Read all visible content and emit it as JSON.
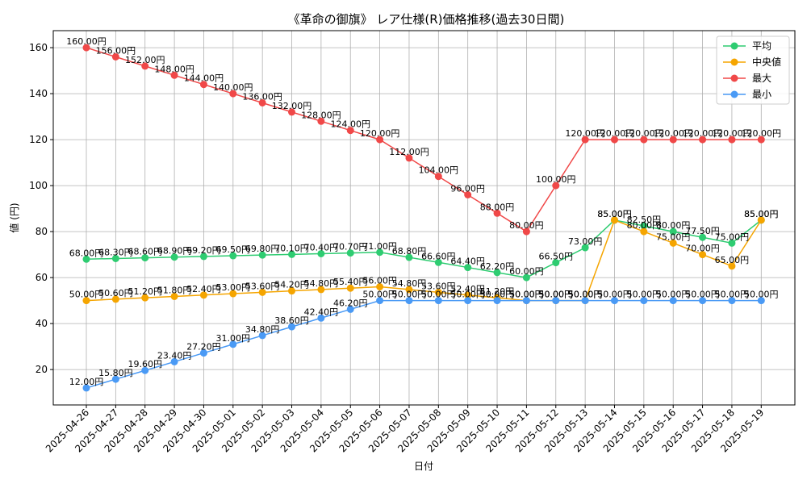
{
  "chart_data": {
    "type": "line",
    "title": "《革命の御旗》 レア仕様(R)価格推移(過去30日間)",
    "xlabel": "日付",
    "ylabel": "値 (円)",
    "ylim": [
      4.6,
      167.4
    ],
    "yticks": [
      20,
      40,
      60,
      80,
      100,
      120,
      140,
      160
    ],
    "grid": true,
    "legend_position": "top-right",
    "label_suffix": "円",
    "categories": [
      "2025-04-26",
      "2025-04-27",
      "2025-04-28",
      "2025-04-29",
      "2025-04-30",
      "2025-05-01",
      "2025-05-02",
      "2025-05-03",
      "2025-05-04",
      "2025-05-05",
      "2025-05-06",
      "2025-05-07",
      "2025-05-08",
      "2025-05-09",
      "2025-05-10",
      "2025-05-11",
      "2025-05-12",
      "2025-05-13",
      "2025-05-14",
      "2025-05-15",
      "2025-05-16",
      "2025-05-17",
      "2025-05-18",
      "2025-05-19"
    ],
    "series": [
      {
        "name": "平均",
        "color": "#2ecc71",
        "values": [
          68.0,
          68.3,
          68.6,
          68.9,
          69.2,
          69.5,
          69.8,
          70.1,
          70.4,
          70.7,
          71.0,
          68.8,
          66.6,
          64.4,
          62.2,
          60.0,
          66.5,
          73.0,
          85.0,
          82.5,
          80.0,
          77.5,
          75.0,
          85.0
        ]
      },
      {
        "name": "中央値",
        "color": "#f5a500",
        "values": [
          50.0,
          50.6,
          51.2,
          51.8,
          52.4,
          53.0,
          53.6,
          54.2,
          54.8,
          55.4,
          56.0,
          54.8,
          53.6,
          52.4,
          51.2,
          50.0,
          50.0,
          50.0,
          85.0,
          80.0,
          75.0,
          70.0,
          65.0,
          85.0
        ]
      },
      {
        "name": "最大",
        "color": "#f04848",
        "values": [
          160.0,
          156.0,
          152.0,
          148.0,
          144.0,
          140.0,
          136.0,
          132.0,
          128.0,
          124.0,
          120.0,
          112.0,
          104.0,
          96.0,
          88.0,
          80.0,
          100.0,
          120.0,
          120.0,
          120.0,
          120.0,
          120.0,
          120.0,
          120.0
        ]
      },
      {
        "name": "最小",
        "color": "#4a9af5",
        "values": [
          12.0,
          15.8,
          19.6,
          23.4,
          27.2,
          31.0,
          34.8,
          38.6,
          42.4,
          46.2,
          50.0,
          50.0,
          50.0,
          50.0,
          50.0,
          50.0,
          50.0,
          50.0,
          50.0,
          50.0,
          50.0,
          50.0,
          50.0,
          50.0
        ]
      }
    ]
  }
}
